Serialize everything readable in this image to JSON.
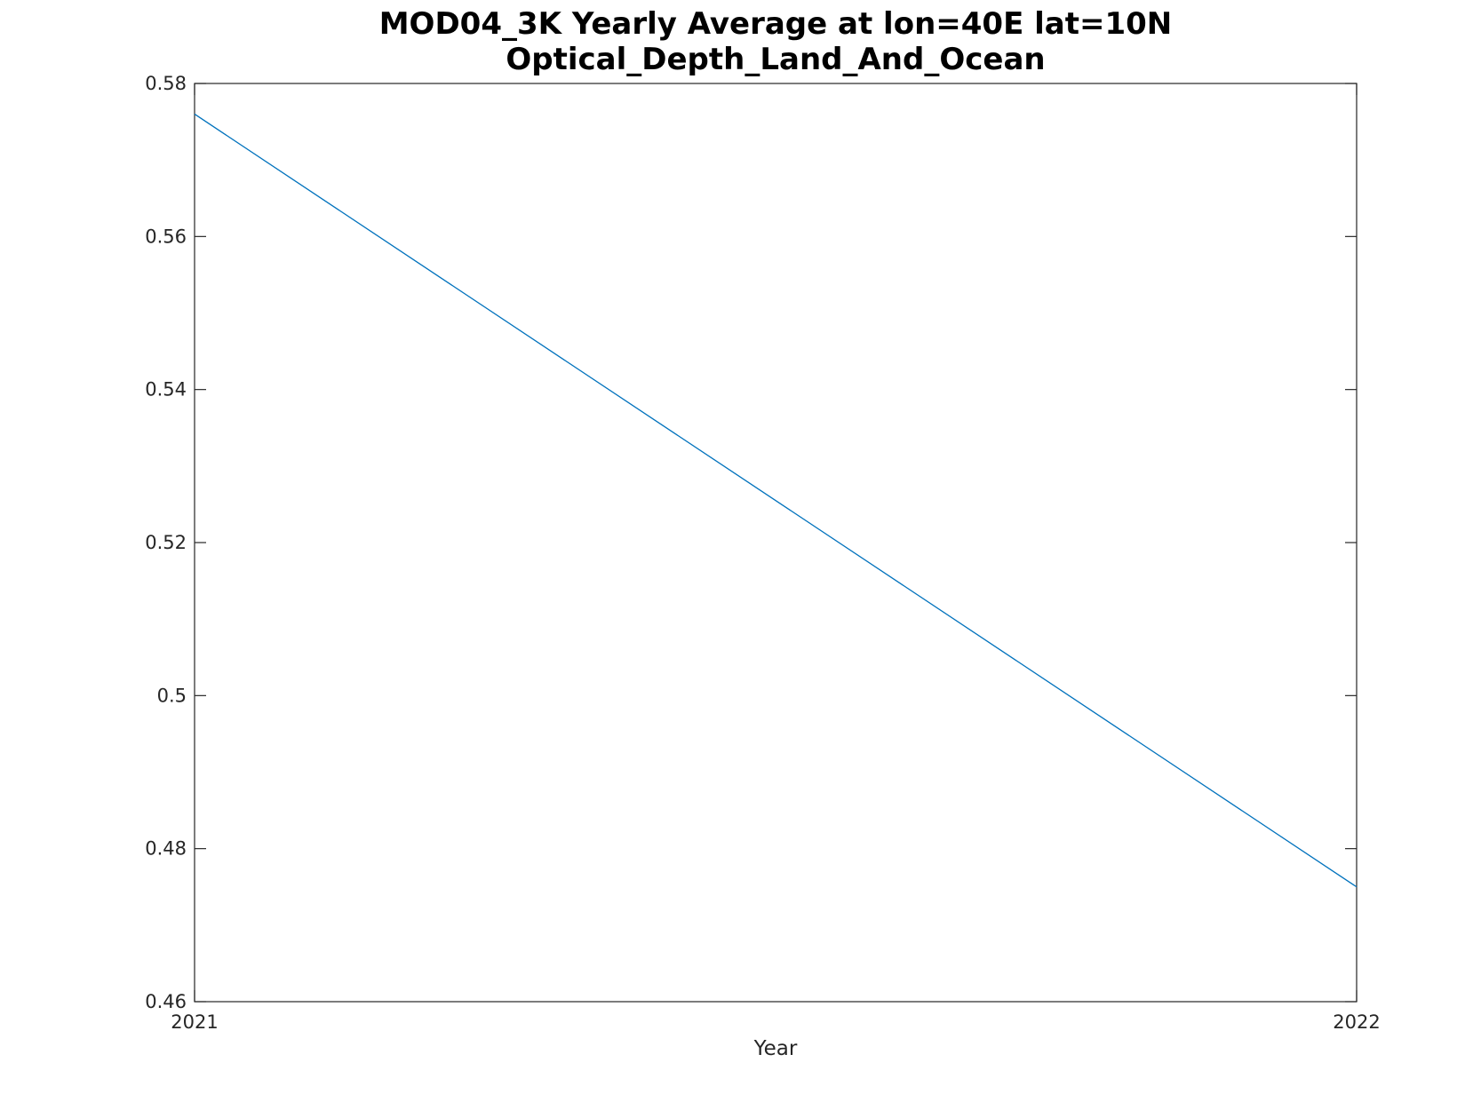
{
  "chart_data": {
    "type": "line",
    "title": [
      "MOD04_3K Yearly Average at lon=40E lat=10N",
      "Optical_Depth_Land_And_Ocean"
    ],
    "xlabel": "Year",
    "ylabel": "",
    "x": [
      2021,
      2022
    ],
    "xticks": [
      "2021",
      "2022"
    ],
    "xlim": [
      2021,
      2022
    ],
    "ylim": [
      0.46,
      0.58
    ],
    "yticks": [
      0.46,
      0.48,
      0.5,
      0.52,
      0.54,
      0.56,
      0.58
    ],
    "ytick_labels": [
      "0.46",
      "0.48",
      "0.5",
      "0.52",
      "0.54",
      "0.56",
      "0.58"
    ],
    "series": [
      {
        "values": [
          0.576,
          0.475
        ],
        "color": "#0072bd"
      }
    ],
    "grid": false,
    "legend": "none"
  },
  "colors": {
    "axis": "#262626",
    "line": "#0072bd"
  }
}
